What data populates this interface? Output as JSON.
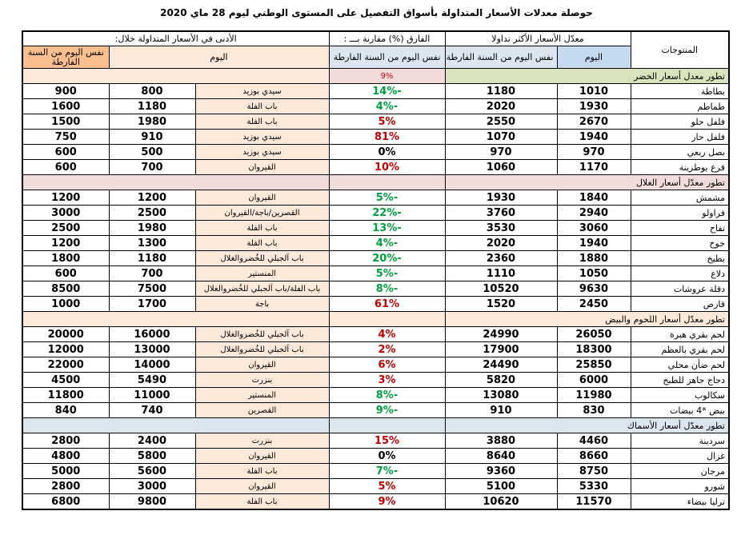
{
  "title": "حوصلة  معدلات الأسعار المتداولة بأسواق التفصيل  على المستوى الوطني ليوم 28  ماي  2020",
  "header": {
    "products": "المنتوجات",
    "avg_group": "معدّل الأسعار الأكثر تداولا",
    "diff_group": "الفارق (%) مقارنة بـــ :",
    "low_group": "الأدنى في الأسعار المتداولة خلال:",
    "avg_today": "اليوم",
    "avg_last_year": "نفس اليوم من السنة الفارطة",
    "diff_last_year": "نفس اليوم من السنة الفارطة",
    "low_today": "اليوم",
    "low_last_year": "نفس اليوم من  السنة الفارطة"
  },
  "sections": [
    {
      "title": "تطور معدل  أسعار الخضر",
      "diff": "9%",
      "rows": [
        [
          "بطاطة",
          1010,
          1180,
          "-14%",
          "سيدي بوزيد",
          800,
          900
        ],
        [
          "طماطم",
          1930,
          2020,
          "-4%",
          "باب الفلة",
          1180,
          1600
        ],
        [
          "فلفل حلو",
          2670,
          2550,
          "5%",
          "باب الفلة",
          1980,
          1500
        ],
        [
          "فلفل حار",
          1940,
          1070,
          "81%",
          "سيدي بوزيد",
          910,
          750
        ],
        [
          "بصل ربعي",
          970,
          970,
          "0%",
          "سيدي بوزيد",
          500,
          600
        ],
        [
          "قرع يوطزينة",
          1170,
          1060,
          "10%",
          "القيروان",
          700,
          600
        ]
      ]
    },
    {
      "title": "تطور معدّل أسعار الغلال",
      "rows": [
        [
          "مشمش",
          1840,
          1930,
          "-5%",
          "القيروان",
          1200,
          1200
        ],
        [
          "فراولو",
          2940,
          3760,
          "-22%",
          "القصرين/باجة/القيروان",
          2500,
          3000
        ],
        [
          "تفاح",
          3060,
          3530,
          "-13%",
          "باب الفلة",
          1980,
          2500
        ],
        [
          "خوخ",
          1940,
          2020,
          "-4%",
          "باب الفلة",
          1300,
          1200
        ],
        [
          "بطيخ",
          1880,
          2360,
          "-20%",
          "باب آلجبلي للخُضروالغلال",
          1180,
          1800
        ],
        [
          "دلاع",
          1050,
          1110,
          "-5%",
          "المنستير",
          700,
          600
        ],
        [
          "دقلة عروشات",
          9630,
          10520,
          "-8%",
          "باب الفلة/باب آلجبلي للخُضروالغلال",
          7500,
          8500
        ],
        [
          "قارص",
          2450,
          1520,
          "61%",
          "باجة",
          1700,
          1000
        ]
      ]
    },
    {
      "title": "تطور معدّل  أسعار اللحوم والبيض",
      "rows": [
        [
          "لحم بقري هبرة",
          26050,
          24990,
          "4%",
          "باب آلجبلي للخُضروالغلال",
          16000,
          20000
        ],
        [
          "لحم بقري بالعظم",
          18300,
          17900,
          "2%",
          "باب آلجبلي للخُضروالغلال",
          13000,
          12000
        ],
        [
          "لحم ضأن محلي",
          25850,
          24490,
          "6%",
          "القيروان",
          14000,
          22000
        ],
        [
          "دجاج جاهز للطبخ",
          6000,
          5820,
          "3%",
          "بنزرت",
          5490,
          4500
        ],
        [
          "سكالوب",
          11980,
          13080,
          "-8%",
          "المنستير",
          11000,
          11800
        ],
        [
          "بيض *4 بيضات",
          830,
          910,
          "-9%",
          "القصرين",
          740,
          840
        ]
      ]
    },
    {
      "title": "تطور معدّل  أسعار الأسماك",
      "rows": [
        [
          "سردينة",
          4460,
          3880,
          "15%",
          "بنزرت",
          2400,
          2800
        ],
        [
          "غزال",
          8660,
          8640,
          "0%",
          "القيروان",
          5800,
          4800
        ],
        [
          "مرجان",
          8750,
          9360,
          "-7%",
          "باب الفلة",
          5600,
          5000
        ],
        [
          "شورو",
          5330,
          5100,
          "5%",
          "القيروان",
          3000,
          2800
        ],
        [
          "ترليا بيضاء",
          11570,
          10620,
          "9%",
          "باب الفلة",
          9800,
          6800
        ]
      ]
    }
  ]
}
